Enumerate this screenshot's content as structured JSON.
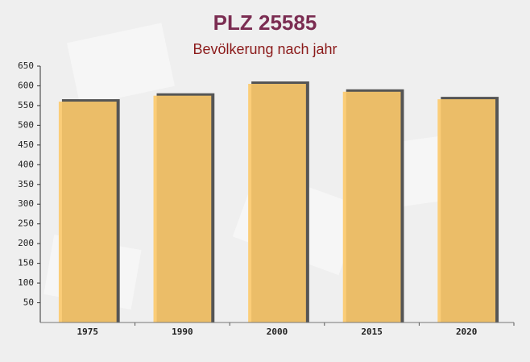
{
  "chart_data": {
    "type": "bar",
    "title": "PLZ 25585",
    "subtitle": "Bevölkerung nach jahr",
    "categories": [
      "1975",
      "1990",
      "2000",
      "2015",
      "2020"
    ],
    "values": [
      560,
      575,
      605,
      585,
      566
    ],
    "color": "#fcc96a",
    "ylim": [
      0,
      650
    ],
    "yticks": [
      50,
      100,
      150,
      200,
      250,
      300,
      350,
      400,
      450,
      500,
      550,
      600,
      650
    ],
    "grid": false
  }
}
